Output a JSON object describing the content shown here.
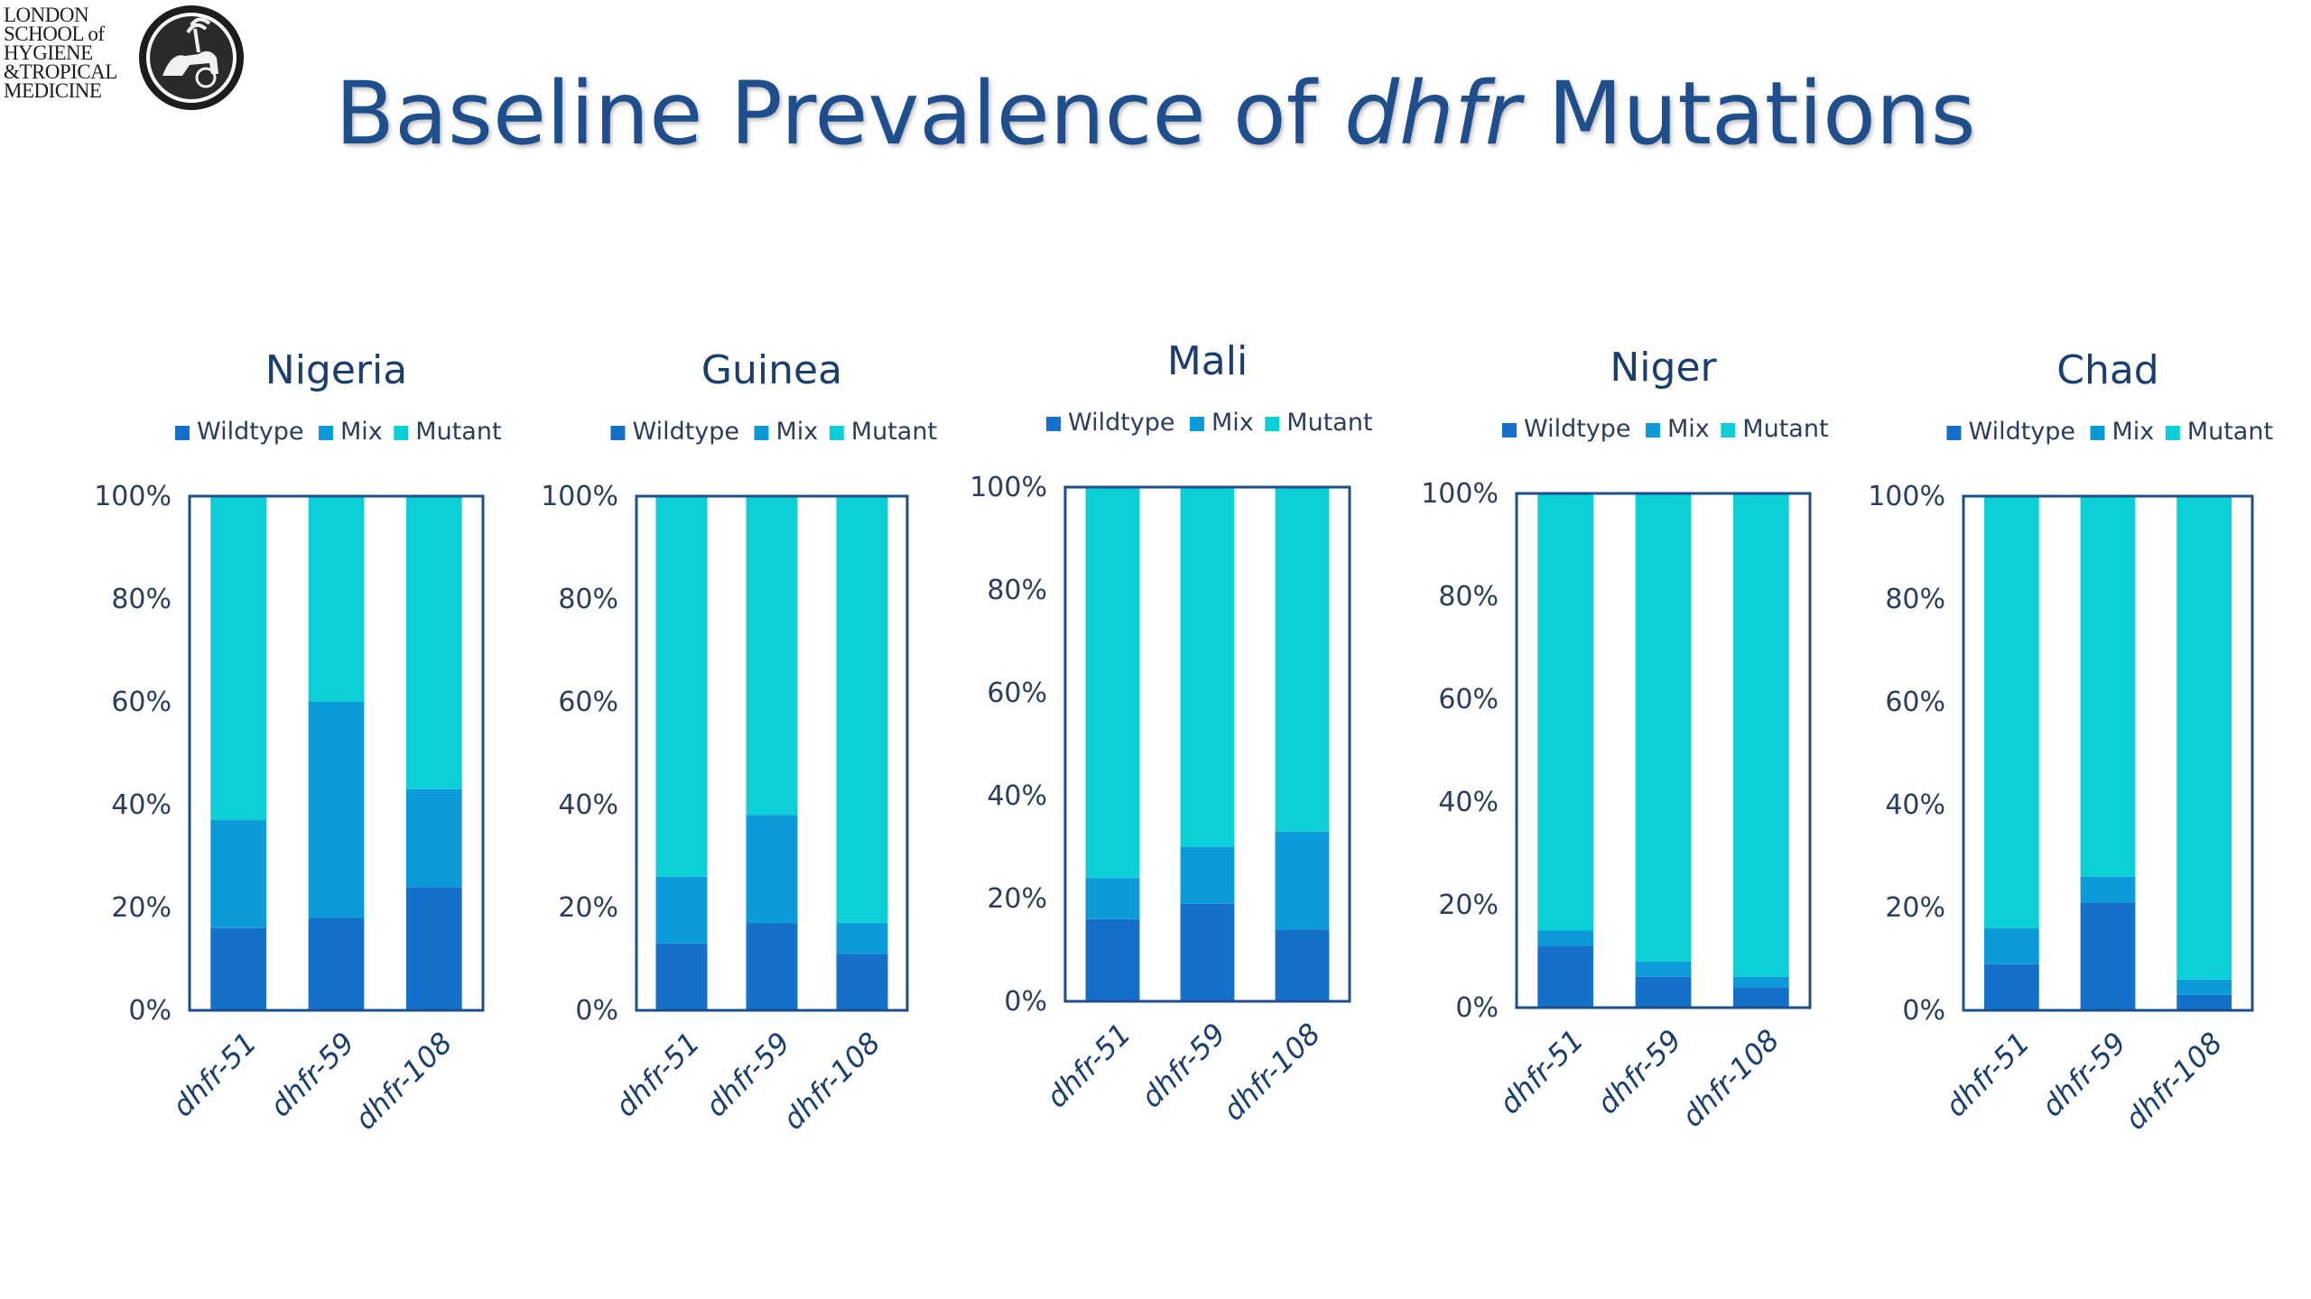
{
  "logo": {
    "lines": [
      "LONDON",
      "SCHOOL of",
      "HYGIENE",
      "&TROPICAL",
      "MEDICINE"
    ],
    "crest_icon": "lshtm-crest-icon"
  },
  "title": {
    "prefix": "Baseline Prevalence of ",
    "italic": "dhfr",
    "suffix": " Mutations"
  },
  "colors": {
    "title": "#1f4e8c",
    "wildtype": "#1470c8",
    "mix": "#0a9bd8",
    "mutant": "#0ccfd8",
    "axis": "#1f4e8c"
  },
  "chart_data": [
    {
      "type": "bar",
      "stacked": true,
      "percent": true,
      "title": "Nigeria",
      "categories": [
        "dhfr-51",
        "dhfr-59",
        "dhfr-108"
      ],
      "series": [
        {
          "name": "Wildtype",
          "values": [
            16,
            18,
            24
          ]
        },
        {
          "name": "Mix",
          "values": [
            21,
            42,
            19
          ]
        },
        {
          "name": "Mutant",
          "values": [
            63,
            40,
            57
          ]
        }
      ],
      "yticks": [
        "0%",
        "20%",
        "40%",
        "60%",
        "80%",
        "100%"
      ],
      "ylim": [
        0,
        100
      ],
      "legend": "top",
      "grid": false
    },
    {
      "type": "bar",
      "stacked": true,
      "percent": true,
      "title": "Guinea",
      "categories": [
        "dhfr-51",
        "dhfr-59",
        "dhfr-108"
      ],
      "series": [
        {
          "name": "Wildtype",
          "values": [
            13,
            17,
            11
          ]
        },
        {
          "name": "Mix",
          "values": [
            13,
            21,
            6
          ]
        },
        {
          "name": "Mutant",
          "values": [
            74,
            62,
            83
          ]
        }
      ],
      "yticks": [
        "0%",
        "20%",
        "40%",
        "60%",
        "80%",
        "100%"
      ],
      "ylim": [
        0,
        100
      ],
      "legend": "top",
      "grid": false
    },
    {
      "type": "bar",
      "stacked": true,
      "percent": true,
      "title": "Mali",
      "categories": [
        "dhfr-51",
        "dhfr-59",
        "dhfr-108"
      ],
      "series": [
        {
          "name": "Wildtype",
          "values": [
            16,
            19,
            14
          ]
        },
        {
          "name": "Mix",
          "values": [
            8,
            11,
            19
          ]
        },
        {
          "name": "Mutant",
          "values": [
            76,
            70,
            67
          ]
        }
      ],
      "yticks": [
        "0%",
        "20%",
        "40%",
        "60%",
        "80%",
        "100%"
      ],
      "ylim": [
        0,
        100
      ],
      "legend": "top",
      "grid": false
    },
    {
      "type": "bar",
      "stacked": true,
      "percent": true,
      "title": "Niger",
      "categories": [
        "dhfr-51",
        "dhfr-59",
        "dhfr-108"
      ],
      "series": [
        {
          "name": "Wildtype",
          "values": [
            12,
            6,
            4
          ]
        },
        {
          "name": "Mix",
          "values": [
            3,
            3,
            2
          ]
        },
        {
          "name": "Mutant",
          "values": [
            85,
            91,
            94
          ]
        }
      ],
      "yticks": [
        "0%",
        "20%",
        "40%",
        "60%",
        "80%",
        "100%"
      ],
      "ylim": [
        0,
        100
      ],
      "legend": "top",
      "grid": false
    },
    {
      "type": "bar",
      "stacked": true,
      "percent": true,
      "title": "Chad",
      "categories": [
        "dhfr-51",
        "dhfr-59",
        "dhfr-108"
      ],
      "series": [
        {
          "name": "Wildtype",
          "values": [
            9,
            21,
            3
          ]
        },
        {
          "name": "Mix",
          "values": [
            7,
            5,
            3
          ]
        },
        {
          "name": "Mutant",
          "values": [
            84,
            74,
            94
          ]
        }
      ],
      "yticks": [
        "0%",
        "20%",
        "40%",
        "60%",
        "80%",
        "100%"
      ],
      "ylim": [
        0,
        100
      ],
      "legend": "top",
      "grid": false
    }
  ]
}
